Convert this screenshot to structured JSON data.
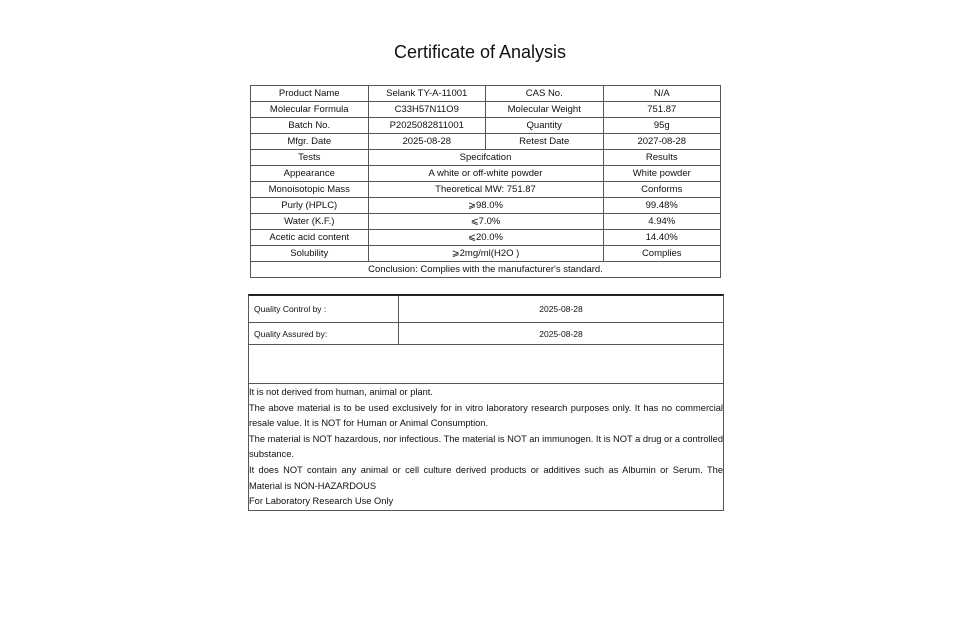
{
  "title": "Certificate of Analysis",
  "info_rows": [
    [
      "Product Name",
      "Selank TY-A-11001",
      "CAS No.",
      "N/A"
    ],
    [
      "Molecular Formula",
      "C33H57N11O9",
      "Molecular Weight",
      "751.87"
    ],
    [
      "Batch No.",
      "P2025082811001",
      "Quantity",
      "95g"
    ],
    [
      "Mfgr. Date",
      "2025-08-28",
      "Retest Date",
      "2027-08-28"
    ]
  ],
  "tests_header": [
    "Tests",
    "Specifcation",
    "Results"
  ],
  "tests": [
    [
      "Appearance",
      "A white or off-white powder",
      "White powder"
    ],
    [
      "Monoisotopic Mass",
      "Theoretical MW: 751.87",
      "Conforms"
    ],
    [
      "Purly (HPLC)",
      "⩾98.0%",
      "99.48%"
    ],
    [
      "Water (K.F.)",
      "⩽7.0%",
      "4.94%"
    ],
    [
      "Acetic acid content",
      "⩽20.0%",
      "14.40%"
    ],
    [
      "Solubility",
      "⩾2mg/ml(H2O )",
      "Complies"
    ]
  ],
  "conclusion": "Conclusion: Complies with the manufacturer's standard.",
  "quality": {
    "control_label": "Quality Control by :",
    "control_date": "2025-08-28",
    "assured_label": "Quality Assured by:",
    "assured_date": "2025-08-28"
  },
  "notes": [
    "It is not derived from human, animal or plant.",
    "The above material is to be used exclusively for in vitro laboratory research purposes only. It has no commercial resale value. It is NOT for Human or Animal Consumption.",
    "The material is NOT hazardous, nor infectious. The material is NOT an immunogen. It is NOT a drug or a controlled substance.",
    "It does NOT contain any animal or cell culture derived products or additives such as Albumin or Serum. The Material is NON-HAZARDOUS",
    "For Laboratory Research Use Only"
  ]
}
